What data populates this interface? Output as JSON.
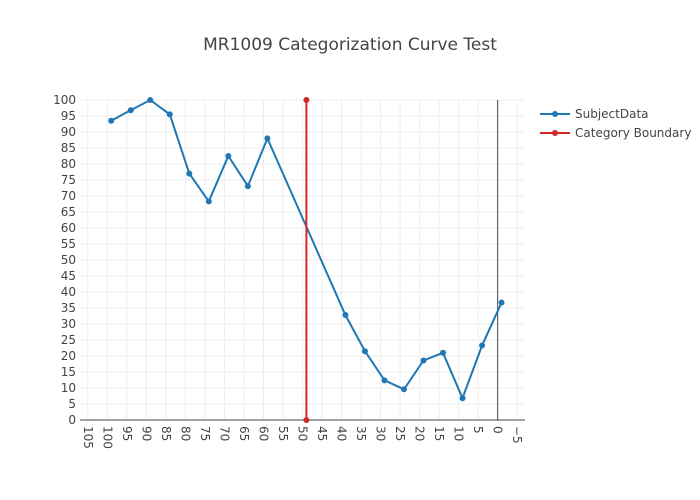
{
  "chart_data": {
    "type": "line",
    "title": "MR1009 Categorization Curve Test",
    "xlabel": "",
    "ylabel": "",
    "xlim": [
      107,
      -7
    ],
    "ylim": [
      0,
      100
    ],
    "x_reversed": true,
    "x_ticks": [
      105,
      100,
      95,
      90,
      85,
      80,
      75,
      70,
      65,
      60,
      55,
      50,
      45,
      40,
      35,
      30,
      25,
      20,
      15,
      10,
      5,
      0,
      -5
    ],
    "y_ticks": [
      0,
      5,
      10,
      15,
      20,
      25,
      30,
      35,
      40,
      45,
      50,
      55,
      60,
      65,
      70,
      75,
      80,
      85,
      90,
      95,
      100
    ],
    "grid": true,
    "zero_line_x": 0,
    "legend_position": "top-right",
    "series": [
      {
        "name": "SubjectData",
        "color": "#1f77b4",
        "mode": "lines+markers",
        "x": [
          99,
          94,
          89,
          84,
          79,
          74,
          69,
          64,
          59,
          39,
          34,
          29,
          24,
          19,
          14,
          9,
          4,
          -1
        ],
        "y": [
          93.5,
          96.8,
          100,
          95.5,
          77,
          68.3,
          82.5,
          73.1,
          88,
          32.8,
          21.5,
          12.4,
          9.6,
          18.6,
          21,
          6.8,
          23.3,
          36.7
        ]
      },
      {
        "name": "Category Boundary",
        "color": "#d62728",
        "mode": "lines+markers",
        "x": [
          49,
          49
        ],
        "y": [
          0,
          100
        ]
      }
    ]
  }
}
